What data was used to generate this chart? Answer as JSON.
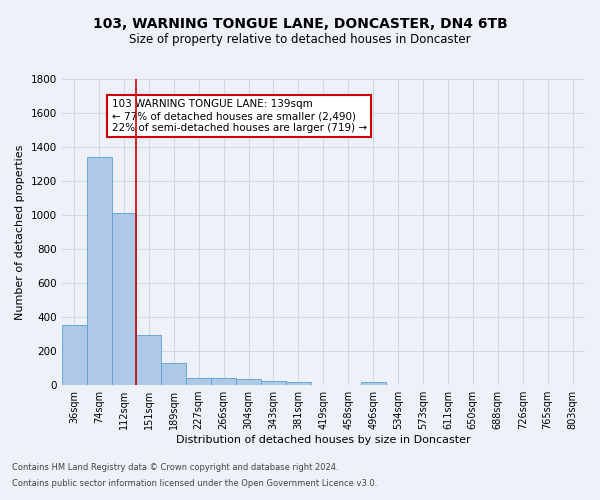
{
  "title": "103, WARNING TONGUE LANE, DONCASTER, DN4 6TB",
  "subtitle": "Size of property relative to detached houses in Doncaster",
  "xlabel": "Distribution of detached houses by size in Doncaster",
  "ylabel": "Number of detached properties",
  "footnote1": "Contains HM Land Registry data © Crown copyright and database right 2024.",
  "footnote2": "Contains public sector information licensed under the Open Government Licence v3.0.",
  "bin_labels": [
    "36sqm",
    "74sqm",
    "112sqm",
    "151sqm",
    "189sqm",
    "227sqm",
    "266sqm",
    "304sqm",
    "343sqm",
    "381sqm",
    "419sqm",
    "458sqm",
    "496sqm",
    "534sqm",
    "573sqm",
    "611sqm",
    "650sqm",
    "688sqm",
    "726sqm",
    "765sqm",
    "803sqm"
  ],
  "bar_heights": [
    355,
    1340,
    1010,
    295,
    130,
    42,
    40,
    35,
    22,
    18,
    0,
    0,
    20,
    0,
    0,
    0,
    0,
    0,
    0,
    0,
    0
  ],
  "bar_color": "#aec8e8",
  "bar_edge_color": "#5a9fd4",
  "grid_color": "#d0d8e8",
  "background_color": "#eef2f8",
  "annotation_text": "103 WARNING TONGUE LANE: 139sqm\n← 77% of detached houses are smaller (2,490)\n22% of semi-detached houses are larger (719) →",
  "annotation_box_color": "#ffffff",
  "annotation_box_edge": "#cc0000",
  "ylim": [
    0,
    1800
  ],
  "yticks": [
    0,
    200,
    400,
    600,
    800,
    1000,
    1200,
    1400,
    1600,
    1800
  ]
}
